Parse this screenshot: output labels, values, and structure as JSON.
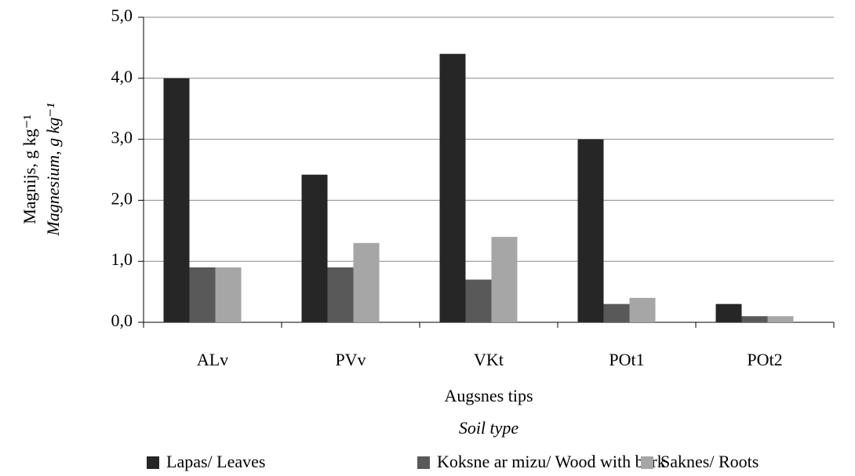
{
  "chart_data": {
    "type": "bar",
    "y_label": [
      "Magnijs, g kg⁻¹",
      "Magnesium, g kg⁻¹"
    ],
    "x_label": [
      "Augsnes tips",
      "Soil type"
    ],
    "categories": [
      "ALv",
      "PVv",
      "VKt",
      "POt1",
      "POt2"
    ],
    "series": [
      {
        "name": "Lapas/ Leaves",
        "color": "#262626",
        "values": [
          4.0,
          2.42,
          4.4,
          3.0,
          0.3
        ]
      },
      {
        "name": "Koksne ar mizu/ Wood with bark",
        "color": "#595959",
        "values": [
          0.9,
          0.9,
          0.7,
          0.3,
          0.1
        ]
      },
      {
        "name": "Saknes/ Roots",
        "color": "#a6a6a6",
        "values": [
          0.9,
          1.3,
          1.4,
          0.4,
          0.1
        ]
      }
    ],
    "ylim": [
      0,
      5
    ],
    "yticks": [
      {
        "value": 0,
        "label": "0,0"
      },
      {
        "value": 1,
        "label": "1,0"
      },
      {
        "value": 2,
        "label": "2,0"
      },
      {
        "value": 3,
        "label": "3,0"
      },
      {
        "value": 4,
        "label": "4,0"
      },
      {
        "value": 5,
        "label": "5,0"
      }
    ],
    "grid": true,
    "legend": "bottom"
  }
}
